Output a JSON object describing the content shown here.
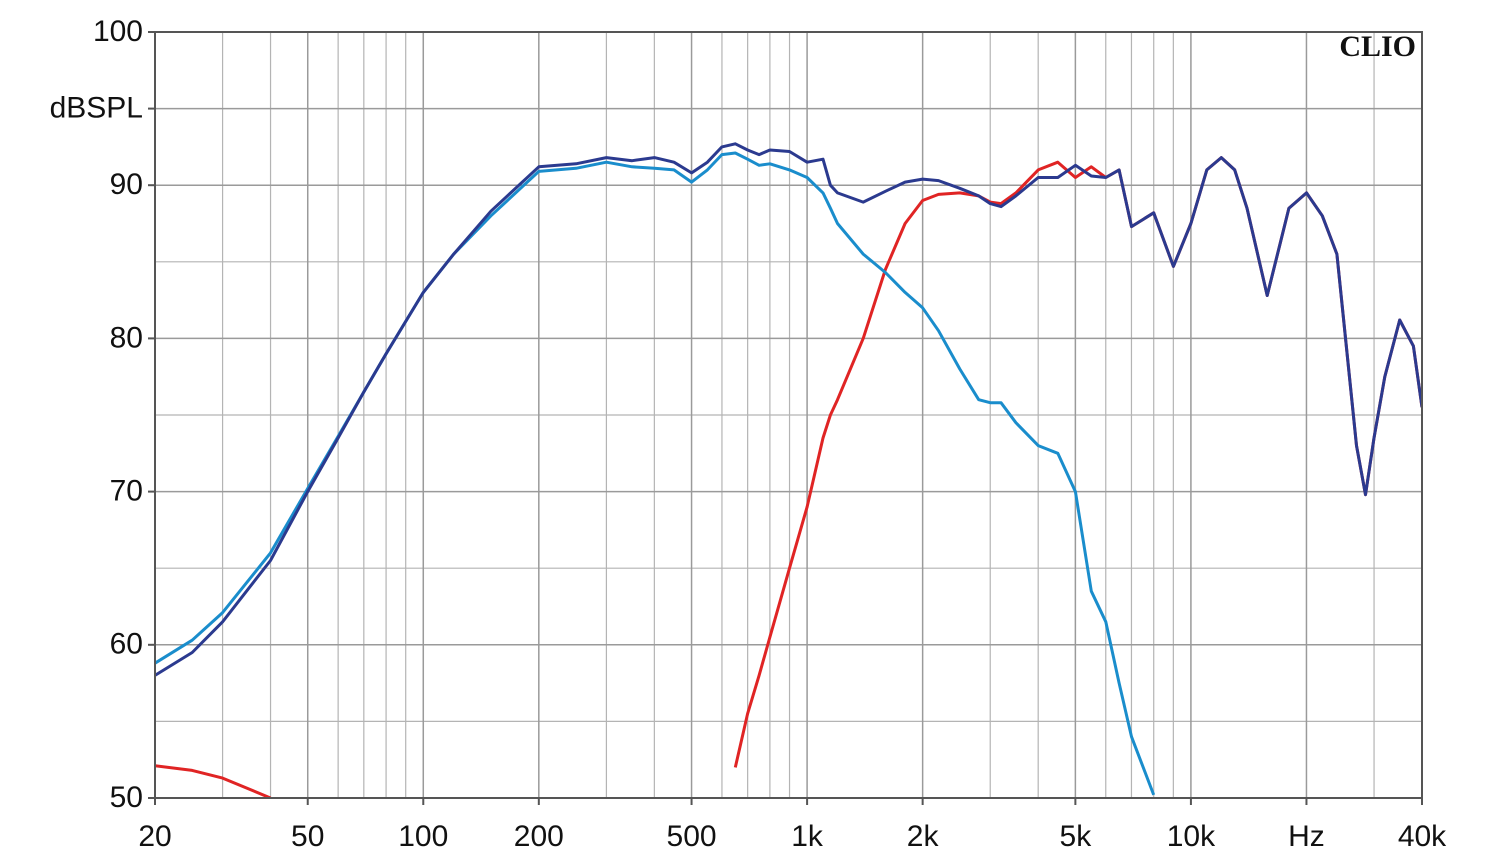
{
  "chart_data": {
    "type": "line",
    "brand": "CLIO",
    "log_x": true,
    "grid": true,
    "x": [
      20,
      25,
      30,
      40,
      50,
      60,
      70,
      80,
      100,
      120,
      150,
      200,
      250,
      300,
      350,
      400,
      450,
      500,
      550,
      600,
      650,
      700,
      750,
      800,
      900,
      1000,
      1100,
      1150,
      1200,
      1400,
      1600,
      1800,
      2000,
      2200,
      2500,
      2800,
      3000,
      3200,
      3500,
      4000,
      4500,
      5000,
      5500,
      6000,
      6500,
      7000,
      8000,
      9000,
      10000,
      11000,
      12000,
      13000,
      14000,
      15800,
      17000,
      18000,
      20000,
      22000,
      24000,
      27000,
      28500,
      30000,
      32000,
      35000,
      38000,
      40000
    ],
    "series": [
      {
        "color": "#e02424",
        "values": [
          52.1,
          51.8,
          51.3,
          50.0,
          null,
          null,
          null,
          null,
          null,
          null,
          null,
          null,
          null,
          null,
          null,
          null,
          null,
          null,
          null,
          null,
          52.0,
          55.5,
          58.0,
          60.5,
          65.0,
          69.0,
          73.5,
          75.0,
          76.0,
          80.0,
          84.5,
          87.5,
          89.0,
          89.4,
          89.5,
          89.3,
          88.9,
          88.8,
          89.5,
          91.0,
          91.5,
          90.5,
          91.2,
          90.5,
          91.0,
          87.3,
          88.2,
          84.7,
          87.5,
          91.0,
          91.8,
          91.0,
          88.5,
          82.8,
          86.0,
          88.5,
          89.5,
          88.0,
          85.5,
          73.0,
          69.8,
          73.5,
          77.5,
          81.2,
          79.5,
          75.5
        ]
      },
      {
        "color": "#1a8dcc",
        "values": [
          58.8,
          60.3,
          62.1,
          66.0,
          70.2,
          73.6,
          76.5,
          79.0,
          83.0,
          85.5,
          88.0,
          90.9,
          91.1,
          91.5,
          91.2,
          91.1,
          91.0,
          90.2,
          91.0,
          92.0,
          92.1,
          91.7,
          91.3,
          91.4,
          91.0,
          90.5,
          89.5,
          88.5,
          87.5,
          85.5,
          84.3,
          83.0,
          82.0,
          80.5,
          78.0,
          76.0,
          75.8,
          75.8,
          74.5,
          73.0,
          72.5,
          70.0,
          63.5,
          61.5,
          57.5,
          54.0,
          50.2,
          null,
          null,
          null,
          null,
          null,
          null,
          null,
          null,
          null,
          null,
          null,
          null,
          null,
          null,
          null,
          null,
          null,
          null,
          null
        ]
      },
      {
        "color": "#2b3a8f",
        "values": [
          58.0,
          59.5,
          61.5,
          65.5,
          70.0,
          73.5,
          76.5,
          79.0,
          83.0,
          85.5,
          88.3,
          91.2,
          91.4,
          91.8,
          91.6,
          91.8,
          91.5,
          90.8,
          91.5,
          92.5,
          92.7,
          92.3,
          92.0,
          92.3,
          92.2,
          91.5,
          91.7,
          90.0,
          89.5,
          88.9,
          89.6,
          90.2,
          90.4,
          90.3,
          89.8,
          89.3,
          88.8,
          88.6,
          89.3,
          90.5,
          90.5,
          91.3,
          90.6,
          90.5,
          91.0,
          87.3,
          88.2,
          84.7,
          87.5,
          91.0,
          91.8,
          91.0,
          88.5,
          82.8,
          86.0,
          88.5,
          89.5,
          88.0,
          85.5,
          73.0,
          69.8,
          73.5,
          77.5,
          81.2,
          79.5,
          75.5
        ]
      }
    ],
    "xlim": [
      20,
      40000
    ],
    "xticks": [
      20,
      50,
      100,
      200,
      500,
      {
        "value": 1000,
        "label": "1k"
      },
      {
        "value": 2000,
        "label": "2k"
      },
      {
        "value": 5000,
        "label": "5k"
      },
      {
        "value": 10000,
        "label": "10k"
      },
      {
        "value": 20000,
        "label": "Hz"
      },
      {
        "value": 40000,
        "label": "40k"
      }
    ],
    "minor_xticks": [
      30,
      40,
      60,
      70,
      80,
      90,
      300,
      400,
      600,
      700,
      800,
      900,
      3000,
      4000,
      6000,
      7000,
      8000,
      9000,
      30000
    ],
    "ylim": [
      50,
      100
    ],
    "yticks": [
      50,
      60,
      70,
      80,
      90,
      {
        "value": 95,
        "label": "dBSPL"
      },
      100
    ],
    "minor_yticks": [
      55,
      65,
      75,
      85
    ]
  }
}
